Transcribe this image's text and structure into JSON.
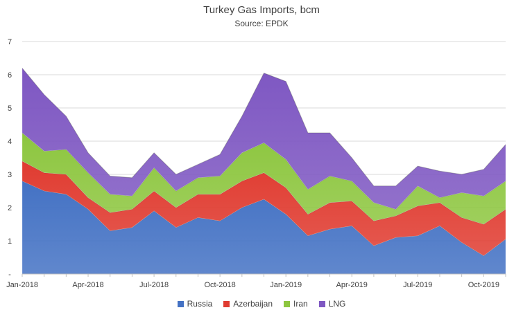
{
  "chart_data": {
    "type": "area",
    "stacked": true,
    "title": "Turkey Gas Imports, bcm",
    "subtitle": "Source: EPDK",
    "xlabel": "",
    "ylabel": "",
    "ylim": [
      0,
      7
    ],
    "y_ticks": [
      "-",
      "1",
      "2",
      "3",
      "4",
      "5",
      "6",
      "7"
    ],
    "x": [
      "2018-01",
      "2018-02",
      "2018-03",
      "2018-04",
      "2018-05",
      "2018-06",
      "2018-07",
      "2018-08",
      "2018-09",
      "2018-10",
      "2018-11",
      "2018-12",
      "2019-01",
      "2019-02",
      "2019-03",
      "2019-04",
      "2019-05",
      "2019-06",
      "2019-07",
      "2019-08",
      "2019-09",
      "2019-10",
      "2019-11"
    ],
    "x_tick_labels": [
      {
        "index": 0,
        "label": "Jan-2018"
      },
      {
        "index": 3,
        "label": "Apr-2018"
      },
      {
        "index": 6,
        "label": "Jul-2018"
      },
      {
        "index": 9,
        "label": "Oct-2018"
      },
      {
        "index": 12,
        "label": "Jan-2019"
      },
      {
        "index": 15,
        "label": "Apr-2019"
      },
      {
        "index": 18,
        "label": "Jul-2019"
      },
      {
        "index": 21,
        "label": "Oct-2019"
      }
    ],
    "grid": "horizontal",
    "legend_position": "bottom",
    "series": [
      {
        "name": "Russia",
        "color": "#4472C4",
        "values": [
          2.8,
          2.5,
          2.4,
          1.95,
          1.3,
          1.4,
          1.9,
          1.4,
          1.7,
          1.6,
          2.0,
          2.25,
          1.8,
          1.15,
          1.35,
          1.45,
          0.85,
          1.1,
          1.15,
          1.45,
          0.95,
          0.55,
          1.05
        ]
      },
      {
        "name": "Azerbaijan",
        "color": "#E03C31",
        "values": [
          0.6,
          0.55,
          0.6,
          0.35,
          0.55,
          0.55,
          0.6,
          0.6,
          0.7,
          0.8,
          0.8,
          0.8,
          0.8,
          0.65,
          0.8,
          0.75,
          0.75,
          0.65,
          0.9,
          0.7,
          0.75,
          0.95,
          0.9
        ]
      },
      {
        "name": "Iran",
        "color": "#8DC63F",
        "values": [
          0.85,
          0.65,
          0.75,
          0.75,
          0.55,
          0.4,
          0.7,
          0.5,
          0.5,
          0.55,
          0.85,
          0.9,
          0.85,
          0.75,
          0.8,
          0.6,
          0.55,
          0.2,
          0.6,
          0.15,
          0.75,
          0.85,
          0.85
        ]
      },
      {
        "name": "LNG",
        "color": "#7E57C2",
        "values": [
          1.95,
          1.7,
          1.0,
          0.6,
          0.55,
          0.55,
          0.45,
          0.5,
          0.4,
          0.65,
          1.1,
          2.1,
          2.35,
          1.7,
          1.3,
          0.7,
          0.5,
          0.7,
          0.6,
          0.8,
          0.55,
          0.8,
          1.1
        ]
      }
    ]
  }
}
